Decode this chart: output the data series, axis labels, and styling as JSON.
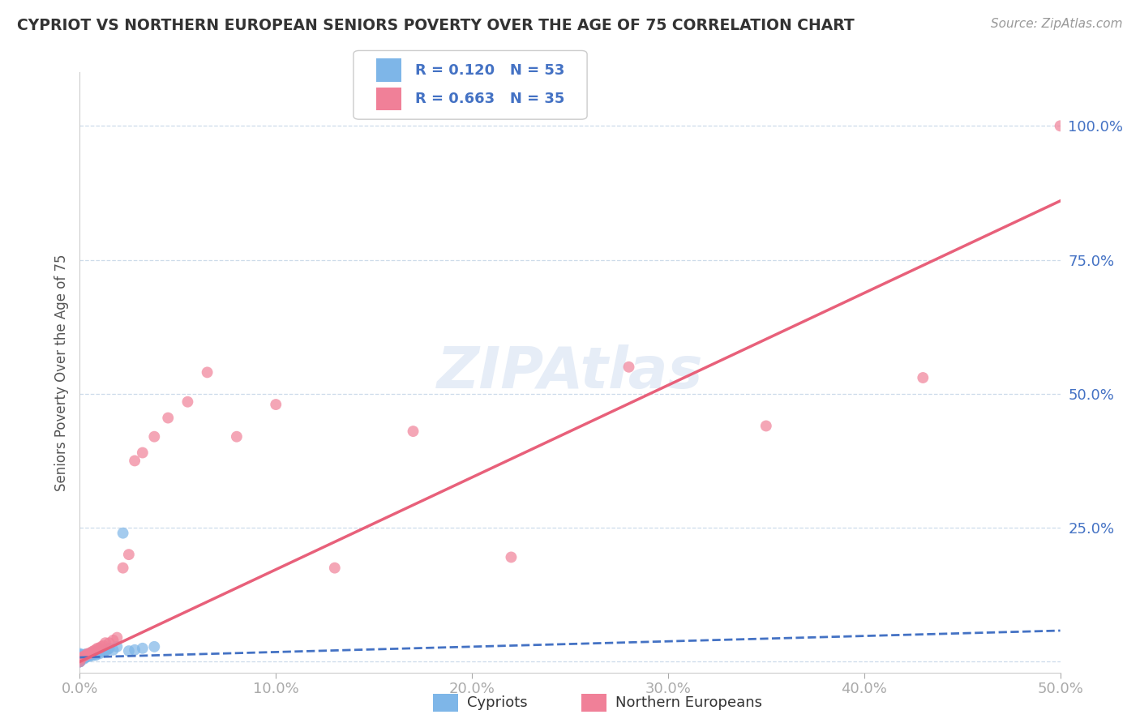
{
  "title": "CYPRIOT VS NORTHERN EUROPEAN SENIORS POVERTY OVER THE AGE OF 75 CORRELATION CHART",
  "source": "Source: ZipAtlas.com",
  "ylabel": "Seniors Poverty Over the Age of 75",
  "xlim": [
    0.0,
    0.5
  ],
  "ylim": [
    -0.02,
    1.1
  ],
  "xticks": [
    0.0,
    0.1,
    0.2,
    0.3,
    0.4,
    0.5
  ],
  "xtick_labels": [
    "0.0%",
    "10.0%",
    "20.0%",
    "30.0%",
    "40.0%",
    "50.0%"
  ],
  "yticks": [
    0.0,
    0.25,
    0.5,
    0.75,
    1.0
  ],
  "ytick_labels": [
    "",
    "25.0%",
    "50.0%",
    "75.0%",
    "100.0%"
  ],
  "R_cypriot": 0.12,
  "N_cypriot": 53,
  "R_northern": 0.663,
  "N_northern": 35,
  "cypriot_color": "#7EB6E8",
  "northern_color": "#F08098",
  "cypriot_line_color": "#4472C4",
  "northern_line_color": "#E8607A",
  "cypriot_x": [
    0.0,
    0.0,
    0.0,
    0.0,
    0.0,
    0.0,
    0.0,
    0.0,
    0.0,
    0.0,
    0.0,
    0.0,
    0.0,
    0.0,
    0.0,
    0.0,
    0.0,
    0.0,
    0.001,
    0.001,
    0.001,
    0.002,
    0.002,
    0.002,
    0.002,
    0.003,
    0.003,
    0.003,
    0.004,
    0.004,
    0.005,
    0.005,
    0.006,
    0.006,
    0.007,
    0.007,
    0.008,
    0.008,
    0.009,
    0.009,
    0.01,
    0.01,
    0.012,
    0.013,
    0.014,
    0.015,
    0.017,
    0.019,
    0.022,
    0.025,
    0.028,
    0.032,
    0.038
  ],
  "cypriot_y": [
    0.0,
    0.0,
    0.0,
    0.0,
    0.002,
    0.003,
    0.004,
    0.005,
    0.006,
    0.007,
    0.007,
    0.008,
    0.009,
    0.01,
    0.011,
    0.012,
    0.013,
    0.015,
    0.005,
    0.008,
    0.012,
    0.005,
    0.007,
    0.01,
    0.013,
    0.008,
    0.01,
    0.014,
    0.01,
    0.013,
    0.01,
    0.015,
    0.012,
    0.016,
    0.013,
    0.017,
    0.012,
    0.018,
    0.015,
    0.02,
    0.015,
    0.022,
    0.018,
    0.02,
    0.022,
    0.025,
    0.022,
    0.028,
    0.24,
    0.02,
    0.022,
    0.025,
    0.028
  ],
  "northern_x": [
    0.0,
    0.0,
    0.001,
    0.002,
    0.003,
    0.004,
    0.005,
    0.006,
    0.007,
    0.008,
    0.009,
    0.01,
    0.011,
    0.012,
    0.013,
    0.015,
    0.017,
    0.019,
    0.022,
    0.025,
    0.028,
    0.032,
    0.038,
    0.045,
    0.055,
    0.065,
    0.08,
    0.1,
    0.13,
    0.17,
    0.22,
    0.28,
    0.35,
    0.43,
    0.5
  ],
  "northern_y": [
    0.0,
    0.005,
    0.008,
    0.01,
    0.012,
    0.015,
    0.015,
    0.018,
    0.02,
    0.022,
    0.025,
    0.025,
    0.028,
    0.03,
    0.035,
    0.035,
    0.04,
    0.045,
    0.175,
    0.2,
    0.375,
    0.39,
    0.42,
    0.455,
    0.485,
    0.54,
    0.42,
    0.48,
    0.175,
    0.43,
    0.195,
    0.55,
    0.44,
    0.53,
    1.0
  ],
  "cyp_regline_x": [
    0.0,
    0.5
  ],
  "cyp_regline_y": [
    0.008,
    0.058
  ],
  "nor_regline_x": [
    0.0,
    0.5
  ],
  "nor_regline_y": [
    0.0,
    0.86
  ]
}
